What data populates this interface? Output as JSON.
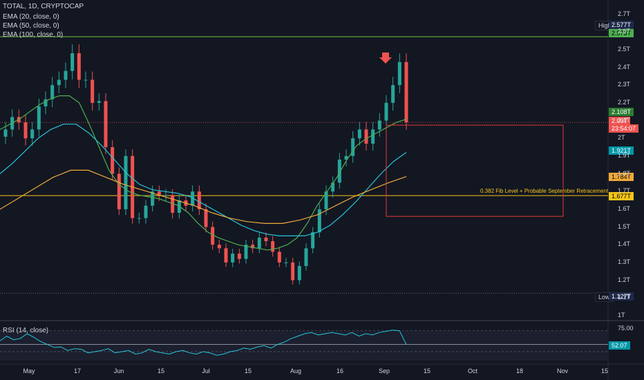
{
  "header": {
    "symbol": "TOTAL, 1D, CRYPTOCAP",
    "ema1": "EMA (20, close, 0)",
    "ema2": "EMA (50, close, 0)",
    "ema3": "EMA (100, close, 0)"
  },
  "rsi_label": "RSI (14, close)",
  "annotation": "0.382 Fib Level + Probable September Retracement",
  "price_tags": {
    "high_label": "High",
    "high_value": "2.577T",
    "fib_top": "2.573T",
    "ema20": "2.108T",
    "last_price": "2.09T",
    "countdown": "23:54:07",
    "ema50": "1.921T",
    "ema100": "1.784T",
    "fib_level": "1.677T",
    "low_label": "Low",
    "low_value": "1.127T",
    "rsi_ob": "75.00",
    "rsi_value": "52.07"
  },
  "colors": {
    "up": "#26a69a",
    "down": "#ef5350",
    "ema20": "#4caf50",
    "ema50": "#26c6da",
    "ema100": "#f0a93b",
    "fib": "#f5c518",
    "green_line": "#76c442",
    "box": "#e53935"
  },
  "chart_data": {
    "type": "candlestick",
    "yaxis_ticks": [
      "2.7T",
      "2.6T",
      "2.5T",
      "2.4T",
      "2.3T",
      "2.2T",
      "2.1T",
      "2T",
      "1.9T",
      "1.8T",
      "1.7T",
      "1.6T",
      "1.5T",
      "1.4T",
      "1.3T",
      "1.2T",
      "1.1T",
      "1T"
    ],
    "xaxis_ticks": [
      "May",
      "17",
      "Jun",
      "15",
      "Jul",
      "15",
      "Aug",
      "16",
      "Sep",
      "15",
      "Oct",
      "18",
      "Nov",
      "15"
    ],
    "ylim": [
      0.98,
      2.78
    ],
    "rsi_ticks": [
      "75.00"
    ],
    "high": 2.577,
    "low": 1.127,
    "last": 2.09,
    "horizontal_levels": {
      "top_line": 2.573,
      "fib_0_382": 1.677,
      "current": 2.09
    },
    "projection_box": {
      "from": "2021-09-07",
      "to": "2021-10-31",
      "top": 2.09,
      "bottom": 1.56
    },
    "close_series": [
      2.05,
      2.12,
      2.09,
      2.0,
      2.05,
      2.18,
      2.22,
      2.3,
      2.33,
      2.38,
      2.48,
      2.33,
      2.33,
      2.2,
      2.21,
      1.95,
      1.8,
      1.6,
      1.9,
      1.55,
      1.55,
      1.62,
      1.7,
      1.68,
      1.68,
      1.58,
      1.65,
      1.62,
      1.7,
      1.6,
      1.5,
      1.4,
      1.38,
      1.3,
      1.35,
      1.32,
      1.4,
      1.38,
      1.44,
      1.42,
      1.36,
      1.3,
      1.3,
      1.2,
      1.28,
      1.38,
      1.47,
      1.6,
      1.7,
      1.75,
      1.88,
      1.9,
      2.0,
      2.05,
      1.97,
      2.05,
      2.1,
      2.2,
      2.3,
      2.43,
      2.09
    ],
    "rsi_series": [
      58,
      66,
      60,
      62,
      70,
      64,
      57,
      52,
      47,
      48,
      42,
      45,
      44,
      38,
      40,
      42,
      45,
      38,
      40,
      42,
      36,
      38,
      44,
      40,
      38,
      36,
      40,
      42,
      38,
      36,
      40,
      38,
      34,
      36,
      40,
      42,
      46,
      44,
      48,
      50,
      46,
      52,
      56,
      62,
      66,
      70,
      72,
      68,
      70,
      72,
      70,
      68,
      72,
      66,
      70,
      68,
      72,
      74,
      76,
      75,
      52
    ],
    "ema20_series": [
      2.05,
      2.08,
      2.11,
      2.15,
      2.19,
      2.22,
      2.24,
      2.24,
      2.2,
      2.08,
      1.95,
      1.82,
      1.74,
      1.7,
      1.68,
      1.67,
      1.66,
      1.64,
      1.62,
      1.58,
      1.52,
      1.47,
      1.44,
      1.42,
      1.4,
      1.39,
      1.38,
      1.37,
      1.38,
      1.4,
      1.44,
      1.52,
      1.62,
      1.7,
      1.78,
      1.88,
      1.96,
      2.0,
      2.03,
      2.06,
      2.09,
      2.108
    ],
    "ema50_series": [
      1.8,
      1.86,
      1.93,
      2.0,
      2.05,
      2.08,
      2.08,
      2.03,
      1.96,
      1.88,
      1.8,
      1.74,
      1.71,
      1.7,
      1.69,
      1.67,
      1.63,
      1.59,
      1.55,
      1.51,
      1.48,
      1.46,
      1.45,
      1.45,
      1.45,
      1.47,
      1.51,
      1.57,
      1.64,
      1.72,
      1.8,
      1.87,
      1.921
    ],
    "ema100_series": [
      1.6,
      1.66,
      1.72,
      1.78,
      1.82,
      1.82,
      1.78,
      1.74,
      1.71,
      1.68,
      1.65,
      1.62,
      1.58,
      1.55,
      1.53,
      1.52,
      1.52,
      1.54,
      1.57,
      1.62,
      1.67,
      1.71,
      1.75,
      1.784
    ]
  }
}
